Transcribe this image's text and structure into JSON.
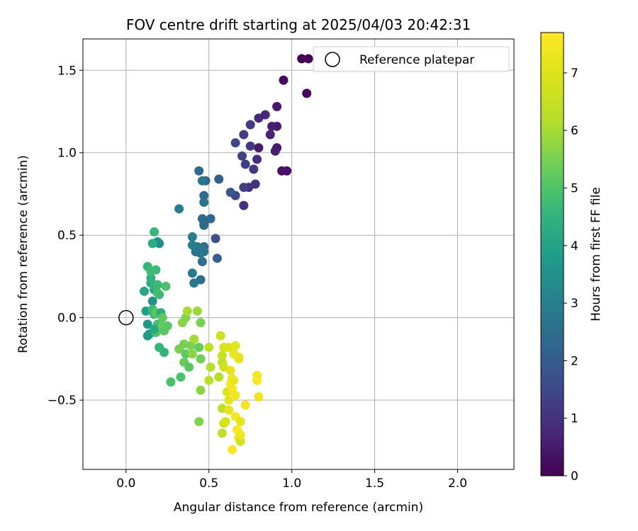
{
  "chart_data": {
    "type": "scatter",
    "title": "FOV centre drift starting at 2025/04/03 20:42:31",
    "xlabel": "Angular distance from reference (arcmin)",
    "ylabel": "Rotation from reference (arcmin)",
    "xlim": [
      -0.26,
      2.34
    ],
    "ylim": [
      -0.92,
      1.69
    ],
    "xticks": [
      "0.0",
      "0.5",
      "1.0",
      "1.5",
      "2.0"
    ],
    "xtick_values": [
      0,
      0.5,
      1.0,
      1.5,
      2.0
    ],
    "yticks": [
      "−0.5",
      "0.0",
      "0.5",
      "1.0",
      "1.5"
    ],
    "ytick_values": [
      -0.5,
      0,
      0.5,
      1.0,
      1.5
    ],
    "grid": true,
    "legend": {
      "position": "top-right",
      "entries": [
        "Reference platepar"
      ]
    },
    "reference_point": {
      "x": 0.0,
      "y": 0.0,
      "label": "Reference platepar"
    },
    "colorbar": {
      "label": "Hours from first FF file",
      "colormap": "viridis",
      "range": [
        0,
        7.7
      ],
      "ticks": [
        "0",
        "1",
        "2",
        "3",
        "4",
        "5",
        "6",
        "7"
      ],
      "tick_values": [
        0,
        1,
        2,
        3,
        4,
        5,
        6,
        7
      ]
    },
    "points": [
      {
        "x": 1.06,
        "y": 1.57,
        "t": 0.0
      },
      {
        "x": 1.1,
        "y": 1.57,
        "t": 0.05
      },
      {
        "x": 1.09,
        "y": 1.36,
        "t": 0.1
      },
      {
        "x": 0.95,
        "y": 1.44,
        "t": 0.15
      },
      {
        "x": 0.97,
        "y": 0.89,
        "t": 0.25
      },
      {
        "x": 0.94,
        "y": 0.89,
        "t": 0.35
      },
      {
        "x": 0.91,
        "y": 1.28,
        "t": 0.5
      },
      {
        "x": 0.91,
        "y": 1.16,
        "t": 0.5
      },
      {
        "x": 0.91,
        "y": 1.03,
        "t": 0.45
      },
      {
        "x": 0.9,
        "y": 1.01,
        "t": 0.55
      },
      {
        "x": 0.88,
        "y": 1.16,
        "t": 0.6
      },
      {
        "x": 0.87,
        "y": 1.11,
        "t": 0.7
      },
      {
        "x": 0.84,
        "y": 1.23,
        "t": 0.75
      },
      {
        "x": 0.8,
        "y": 1.03,
        "t": 0.5
      },
      {
        "x": 0.8,
        "y": 1.21,
        "t": 0.8
      },
      {
        "x": 0.79,
        "y": 0.96,
        "t": 0.95
      },
      {
        "x": 0.78,
        "y": 0.81,
        "t": 1.0
      },
      {
        "x": 0.77,
        "y": 0.9,
        "t": 1.1
      },
      {
        "x": 0.75,
        "y": 1.17,
        "t": 1.2
      },
      {
        "x": 0.75,
        "y": 1.04,
        "t": 1.15
      },
      {
        "x": 0.74,
        "y": 0.79,
        "t": 1.0
      },
      {
        "x": 0.72,
        "y": 0.93,
        "t": 1.25
      },
      {
        "x": 0.71,
        "y": 0.79,
        "t": 1.3
      },
      {
        "x": 0.71,
        "y": 0.68,
        "t": 1.0
      },
      {
        "x": 0.71,
        "y": 1.11,
        "t": 1.3
      },
      {
        "x": 0.7,
        "y": 0.98,
        "t": 1.35
      },
      {
        "x": 0.66,
        "y": 1.06,
        "t": 1.45
      },
      {
        "x": 0.66,
        "y": 0.74,
        "t": 1.5
      },
      {
        "x": 0.63,
        "y": 0.76,
        "t": 1.9
      },
      {
        "x": 0.56,
        "y": 0.84,
        "t": 2.05
      },
      {
        "x": 0.55,
        "y": 0.36,
        "t": 2.1
      },
      {
        "x": 0.54,
        "y": 0.48,
        "t": 1.8
      },
      {
        "x": 0.51,
        "y": 0.6,
        "t": 2.3
      },
      {
        "x": 0.48,
        "y": 0.83,
        "t": 2.2
      },
      {
        "x": 0.47,
        "y": 0.74,
        "t": 2.3
      },
      {
        "x": 0.47,
        "y": 0.7,
        "t": 2.6
      },
      {
        "x": 0.47,
        "y": 0.56,
        "t": 2.3
      },
      {
        "x": 0.47,
        "y": 0.57,
        "t": 2.4
      },
      {
        "x": 0.47,
        "y": 0.43,
        "t": 2.4
      },
      {
        "x": 0.47,
        "y": 0.4,
        "t": 2.6
      },
      {
        "x": 0.46,
        "y": 0.83,
        "t": 2.7
      },
      {
        "x": 0.46,
        "y": 0.6,
        "t": 2.4
      },
      {
        "x": 0.46,
        "y": 0.34,
        "t": 2.6
      },
      {
        "x": 0.45,
        "y": 0.42,
        "t": 2.7
      },
      {
        "x": 0.45,
        "y": 0.39,
        "t": 2.8
      },
      {
        "x": 0.45,
        "y": 0.23,
        "t": 2.5
      },
      {
        "x": 0.44,
        "y": 0.89,
        "t": 2.4
      },
      {
        "x": 0.43,
        "y": 0.43,
        "t": 2.8
      },
      {
        "x": 0.42,
        "y": 0.4,
        "t": 2.7
      },
      {
        "x": 0.41,
        "y": 0.21,
        "t": 2.8
      },
      {
        "x": 0.4,
        "y": 0.44,
        "t": 3.0
      },
      {
        "x": 0.4,
        "y": 0.49,
        "t": 2.9
      },
      {
        "x": 0.4,
        "y": 0.27,
        "t": 2.9
      },
      {
        "x": 0.32,
        "y": 0.66,
        "t": 2.9
      },
      {
        "x": 0.2,
        "y": 0.45,
        "t": 3.3
      },
      {
        "x": 0.19,
        "y": 0.46,
        "t": 3.5
      },
      {
        "x": 0.17,
        "y": 0.52,
        "t": 4.6
      },
      {
        "x": 0.16,
        "y": 0.45,
        "t": 4.3
      },
      {
        "x": 0.17,
        "y": 0.17,
        "t": 3.7
      },
      {
        "x": 0.16,
        "y": 0.1,
        "t": 3.5
      },
      {
        "x": 0.15,
        "y": 0.21,
        "t": 4.2
      },
      {
        "x": 0.15,
        "y": 0.24,
        "t": 4.4
      },
      {
        "x": 0.13,
        "y": 0.31,
        "t": 4.6
      },
      {
        "x": 0.12,
        "y": 0.04,
        "t": 3.9
      },
      {
        "x": 0.13,
        "y": -0.04,
        "t": 3.7
      },
      {
        "x": 0.14,
        "y": -0.1,
        "t": 3.5
      },
      {
        "x": 0.13,
        "y": -0.11,
        "t": 3.8
      },
      {
        "x": 0.11,
        "y": 0.16,
        "t": 4.1
      },
      {
        "x": 0.15,
        "y": 0.28,
        "t": 4.8
      },
      {
        "x": 0.18,
        "y": 0.29,
        "t": 4.7
      },
      {
        "x": 0.17,
        "y": 0.19,
        "t": 4.5
      },
      {
        "x": 0.19,
        "y": 0.2,
        "t": 4.7
      },
      {
        "x": 0.2,
        "y": 0.14,
        "t": 4.6
      },
      {
        "x": 0.19,
        "y": 0.15,
        "t": 4.8
      },
      {
        "x": 0.24,
        "y": 0.19,
        "t": 4.9
      },
      {
        "x": 0.16,
        "y": 0.05,
        "t": 4.8
      },
      {
        "x": 0.17,
        "y": 0.02,
        "t": 4.7
      },
      {
        "x": 0.18,
        "y": 0.03,
        "t": 5.1
      },
      {
        "x": 0.19,
        "y": -0.04,
        "t": 4.9
      },
      {
        "x": 0.18,
        "y": -0.09,
        "t": 5.0
      },
      {
        "x": 0.21,
        "y": 0.03,
        "t": 4.3
      },
      {
        "x": 0.22,
        "y": 0.0,
        "t": 5.2
      },
      {
        "x": 0.22,
        "y": -0.05,
        "t": 5.3
      },
      {
        "x": 0.23,
        "y": -0.08,
        "t": 5.1
      },
      {
        "x": 0.25,
        "y": -0.05,
        "t": 5.1
      },
      {
        "x": 0.17,
        "y": -0.07,
        "t": 4.2
      },
      {
        "x": 0.2,
        "y": -0.18,
        "t": 4.6
      },
      {
        "x": 0.23,
        "y": -0.21,
        "t": 4.5
      },
      {
        "x": 0.27,
        "y": -0.39,
        "t": 4.9
      },
      {
        "x": 0.33,
        "y": -0.36,
        "t": 4.9
      },
      {
        "x": 0.32,
        "y": -0.19,
        "t": 5.5
      },
      {
        "x": 0.35,
        "y": -0.16,
        "t": 5.5
      },
      {
        "x": 0.34,
        "y": -0.03,
        "t": 5.7
      },
      {
        "x": 0.36,
        "y": 0.0,
        "t": 5.6
      },
      {
        "x": 0.37,
        "y": 0.04,
        "t": 6.0
      },
      {
        "x": 0.36,
        "y": -0.22,
        "t": 5.2
      },
      {
        "x": 0.35,
        "y": -0.27,
        "t": 5.3
      },
      {
        "x": 0.38,
        "y": -0.3,
        "t": 5.1
      },
      {
        "x": 0.39,
        "y": -0.17,
        "t": 5.5
      },
      {
        "x": 0.4,
        "y": -0.22,
        "t": 5.7
      },
      {
        "x": 0.41,
        "y": -0.13,
        "t": 6.0
      },
      {
        "x": 0.43,
        "y": 0.04,
        "t": 5.9
      },
      {
        "x": 0.45,
        "y": -0.03,
        "t": 5.5
      },
      {
        "x": 0.44,
        "y": -0.18,
        "t": 5.3
      },
      {
        "x": 0.45,
        "y": -0.25,
        "t": 5.4
      },
      {
        "x": 0.45,
        "y": -0.44,
        "t": 5.7
      },
      {
        "x": 0.44,
        "y": -0.63,
        "t": 5.6
      },
      {
        "x": 0.5,
        "y": -0.18,
        "t": 6.3
      },
      {
        "x": 0.51,
        "y": -0.3,
        "t": 6.2
      },
      {
        "x": 0.5,
        "y": -0.38,
        "t": 6.3
      },
      {
        "x": 0.56,
        "y": -0.36,
        "t": 6.2
      },
      {
        "x": 0.57,
        "y": -0.11,
        "t": 6.6
      },
      {
        "x": 0.58,
        "y": -0.23,
        "t": 6.6
      },
      {
        "x": 0.58,
        "y": -0.27,
        "t": 6.4
      },
      {
        "x": 0.59,
        "y": -0.18,
        "t": 6.9
      },
      {
        "x": 0.59,
        "y": -0.3,
        "t": 6.7
      },
      {
        "x": 0.58,
        "y": -0.55,
        "t": 6.3
      },
      {
        "x": 0.58,
        "y": -0.7,
        "t": 6.4
      },
      {
        "x": 0.59,
        "y": -0.64,
        "t": 6.6
      },
      {
        "x": 0.6,
        "y": -0.63,
        "t": 6.9
      },
      {
        "x": 0.61,
        "y": -0.45,
        "t": 7.0
      },
      {
        "x": 0.62,
        "y": -0.5,
        "t": 7.2
      },
      {
        "x": 0.62,
        "y": -0.56,
        "t": 7.2
      },
      {
        "x": 0.62,
        "y": -0.18,
        "t": 7.0
      },
      {
        "x": 0.63,
        "y": -0.32,
        "t": 7.2
      },
      {
        "x": 0.63,
        "y": -0.4,
        "t": 7.6
      },
      {
        "x": 0.64,
        "y": -0.37,
        "t": 7.4
      },
      {
        "x": 0.64,
        "y": -0.43,
        "t": 7.5
      },
      {
        "x": 0.65,
        "y": -0.22,
        "t": 7.3
      },
      {
        "x": 0.65,
        "y": -0.38,
        "t": 7.3
      },
      {
        "x": 0.66,
        "y": -0.17,
        "t": 7.1
      },
      {
        "x": 0.66,
        "y": -0.47,
        "t": 7.4
      },
      {
        "x": 0.66,
        "y": -0.6,
        "t": 7.5
      },
      {
        "x": 0.67,
        "y": -0.68,
        "t": 7.6
      },
      {
        "x": 0.68,
        "y": -0.24,
        "t": 7.1
      },
      {
        "x": 0.68,
        "y": -0.25,
        "t": 7.2
      },
      {
        "x": 0.68,
        "y": -0.73,
        "t": 7.5
      },
      {
        "x": 0.69,
        "y": -0.63,
        "t": 7.1
      },
      {
        "x": 0.69,
        "y": -0.75,
        "t": 6.8
      },
      {
        "x": 0.69,
        "y": -0.71,
        "t": 7.4
      },
      {
        "x": 0.72,
        "y": -0.53,
        "t": 7.4
      },
      {
        "x": 0.64,
        "y": -0.8,
        "t": 7.7
      },
      {
        "x": 0.79,
        "y": -0.35,
        "t": 7.5
      },
      {
        "x": 0.79,
        "y": -0.38,
        "t": 7.6
      },
      {
        "x": 0.8,
        "y": -0.48,
        "t": 7.4
      }
    ]
  }
}
